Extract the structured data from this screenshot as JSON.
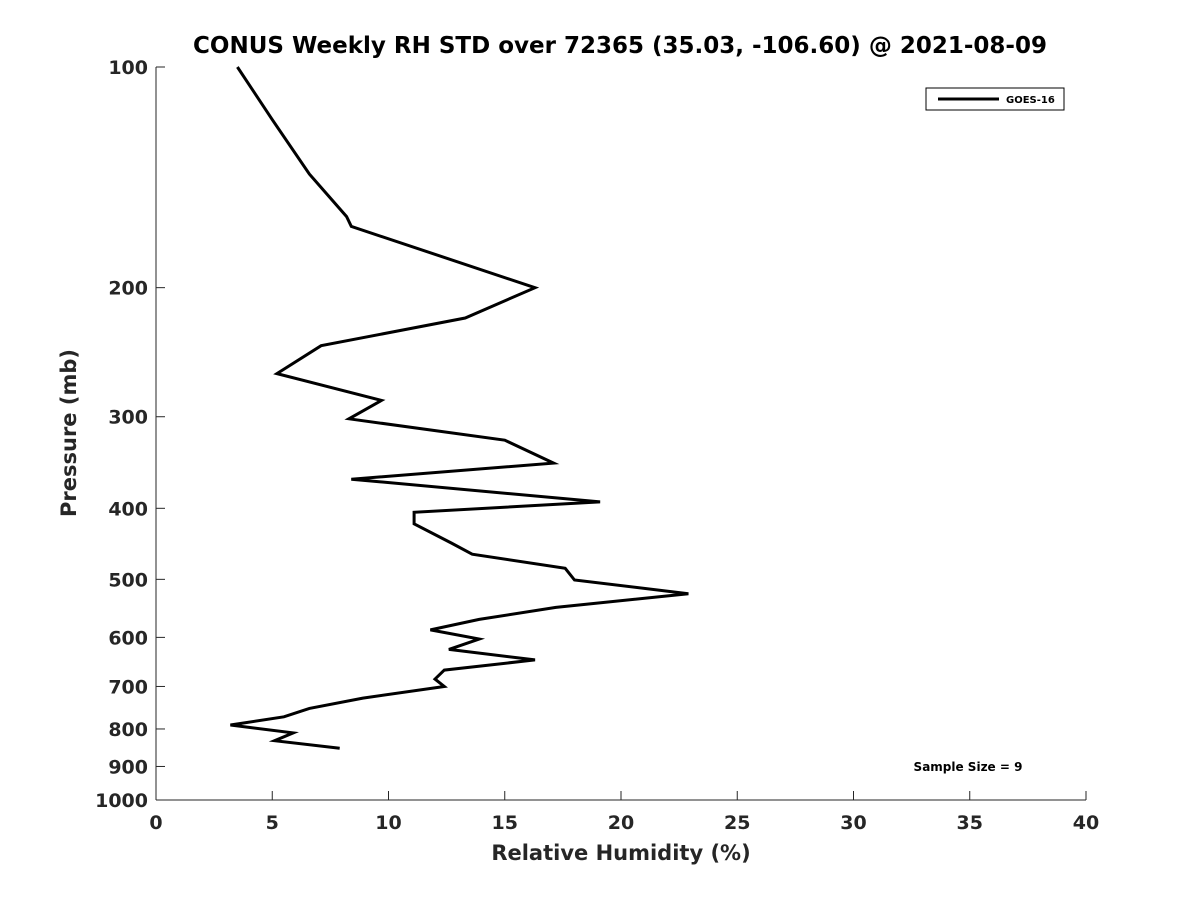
{
  "chart_data": {
    "type": "line",
    "title": "CONUS Weekly RH STD over 72365 (35.03, -106.60) @ 2021-08-09",
    "xlabel": "Relative Humidity (%)",
    "ylabel": "Pressure (mb)",
    "xlim": [
      0,
      40
    ],
    "ylim": [
      100,
      1000
    ],
    "y_scale": "log",
    "y_reversed": true,
    "x_ticks": [
      0,
      5,
      10,
      15,
      20,
      25,
      30,
      35,
      40
    ],
    "y_ticks": [
      100,
      200,
      300,
      400,
      500,
      600,
      700,
      800,
      900,
      1000
    ],
    "grid": false,
    "legend_position": "top-right",
    "line_color": "#000000",
    "series": [
      {
        "name": "GOES-16",
        "x": [
          3.5,
          5.0,
          6.6,
          8.2,
          8.4,
          16.3,
          13.3,
          7.1,
          5.2,
          9.7,
          8.3,
          15.0,
          17.1,
          8.4,
          19.1,
          11.1,
          11.1,
          12.7,
          13.6,
          17.6,
          18.0,
          22.9,
          17.2,
          13.9,
          11.8,
          13.9,
          12.6,
          16.3,
          12.4,
          12.0,
          12.4,
          8.9,
          6.6,
          5.5,
          3.2,
          5.9,
          5.1,
          7.9
        ],
        "y": [
          100,
          118,
          140,
          160,
          165,
          200,
          220,
          240,
          262,
          285,
          302,
          323,
          347,
          365,
          392,
          405,
          420,
          446,
          462,
          483,
          501,
          523,
          546,
          567,
          586,
          603,
          623,
          644,
          665,
          684,
          700,
          726,
          750,
          770,
          790,
          810,
          830,
          850
        ]
      }
    ],
    "annotations": [
      "Sample Size = 9"
    ]
  }
}
